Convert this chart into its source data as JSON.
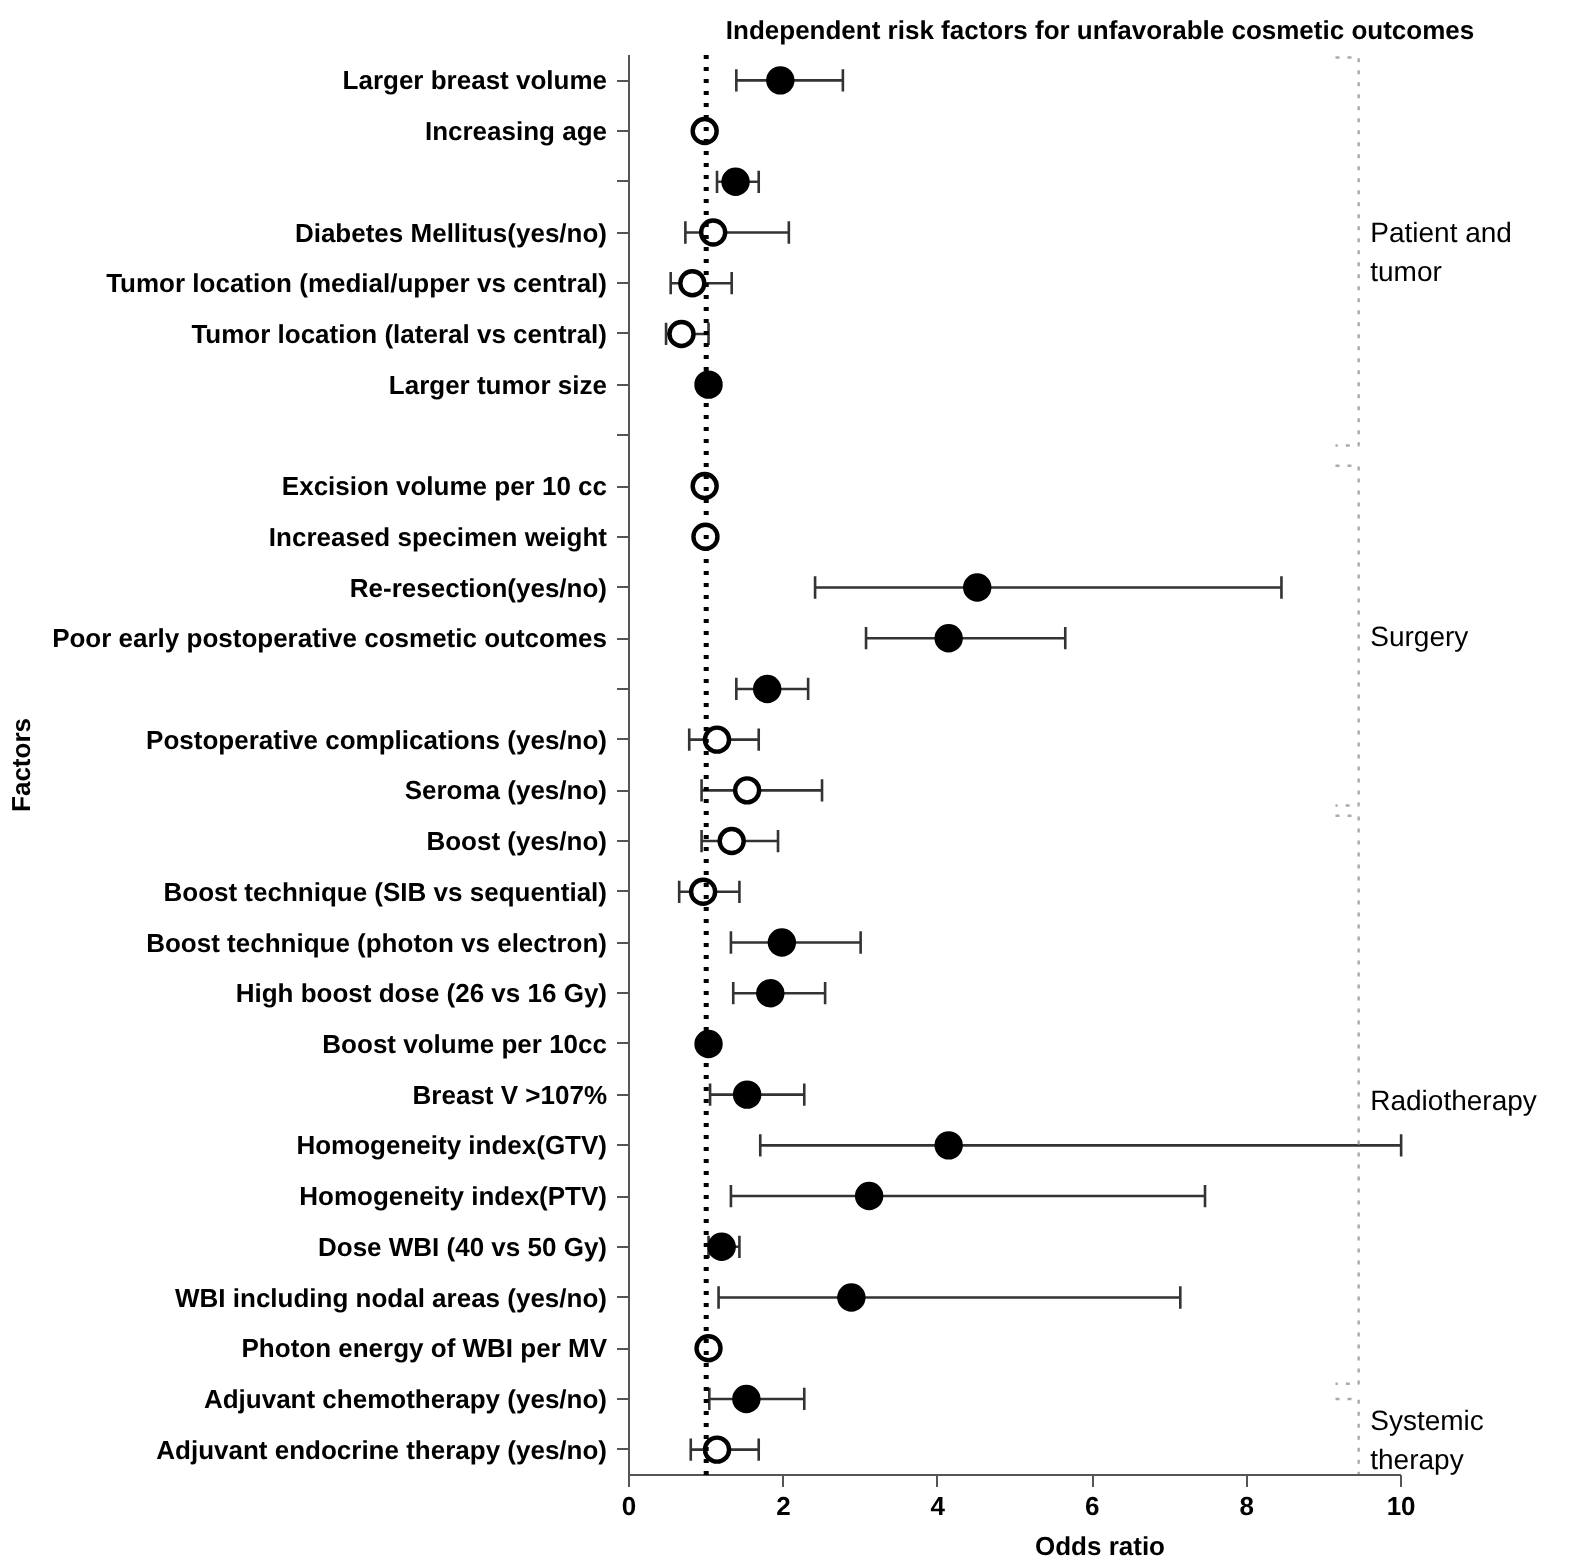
{
  "chart_data": {
    "type": "scatter",
    "title": "Independent risk factors for unfavorable cosmetic outcomes",
    "xlabel": "Odds ratio",
    "ylabel": "Factors",
    "categories": [
      "Larger breast volume",
      "Increasing age",
      null,
      "Diabetes Mellitus(yes/no)",
      "Tumor location (medial/upper vs central)",
      "Tumor location (lateral vs central)",
      "Larger tumor size",
      null,
      "Excision volume per 10 cc",
      "Increased specimen weight",
      "Re-resection(yes/no)",
      "Poor early postoperative cosmetic outcomes",
      null,
      "Postoperative complications (yes/no)",
      "Seroma (yes/no)",
      "Boost (yes/no)",
      "Boost technique (SIB vs sequential)",
      "Boost technique (photon vs electron)",
      "High boost dose (26 vs 16 Gy)",
      "Boost volume per 10cc",
      "Breast V >107%",
      "Homogeneity index(GTV)",
      "Homogeneity index(PTV)",
      "Dose WBI (40 vs 50 Gy)",
      "WBI including nodal areas (yes/no)",
      "Photon energy of WBI per MV",
      "Adjuvant chemotherapy (yes/no)",
      "Adjuvant endocrine therapy (yes/no)"
    ],
    "series": [
      {
        "color": "#000000",
        "marker": "circle",
        "values": [
          1.96,
          null,
          1.38,
          null,
          null,
          null,
          1.03,
          null,
          null,
          null,
          4.51,
          4.14,
          1.79,
          null,
          null,
          null,
          null,
          1.98,
          1.83,
          1.03,
          1.53,
          4.14,
          3.11,
          1.2,
          2.88,
          null,
          1.52,
          null
        ],
        "errors": [
          [
            1.39,
            2.77
          ],
          null,
          [
            1.14,
            1.68
          ],
          null,
          null,
          null,
          null,
          null,
          null,
          null,
          [
            2.41,
            8.45
          ],
          [
            3.07,
            5.65
          ],
          [
            1.39,
            2.32
          ],
          null,
          null,
          null,
          null,
          [
            1.32,
            3.0
          ],
          [
            1.35,
            2.54
          ],
          null,
          [
            1.05,
            2.27
          ],
          [
            1.7,
            10.0
          ],
          [
            1.32,
            7.46
          ],
          [
            1.03,
            1.43
          ],
          [
            1.16,
            7.14
          ],
          null,
          [
            1.04,
            2.27
          ],
          null
        ]
      },
      {
        "color": "#ffffff",
        "marker": "circle",
        "values": [
          null,
          0.98,
          null,
          1.09,
          0.82,
          0.68,
          null,
          null,
          0.98,
          0.99,
          null,
          null,
          null,
          1.14,
          1.53,
          1.33,
          0.96,
          null,
          null,
          null,
          null,
          null,
          null,
          null,
          null,
          1.03,
          null,
          1.14
        ],
        "errors": [
          null,
          [
            0.97,
            1.0
          ],
          null,
          [
            0.73,
            2.07
          ],
          [
            0.54,
            1.33
          ],
          [
            0.48,
            1.03
          ],
          null,
          null,
          null,
          null,
          null,
          null,
          null,
          [
            0.78,
            1.68
          ],
          [
            0.94,
            2.5
          ],
          [
            0.94,
            1.93
          ],
          [
            0.65,
            1.43
          ],
          null,
          null,
          null,
          null,
          null,
          null,
          null,
          null,
          null,
          null,
          [
            0.8,
            1.68
          ]
        ]
      }
    ],
    "orientation": "horizontal",
    "xlim": [
      0,
      10
    ],
    "xticks": [
      0,
      2,
      4,
      6,
      8,
      10
    ],
    "ref_lines": [
      {
        "axis": "x",
        "value": 1,
        "line_style": "dotted",
        "color": "#000000"
      }
    ],
    "annotations": [
      "Patient and\ntumor",
      "Surgery",
      "Radiotherapy",
      "Systemic\ntherapy"
    ],
    "grid": false
  }
}
